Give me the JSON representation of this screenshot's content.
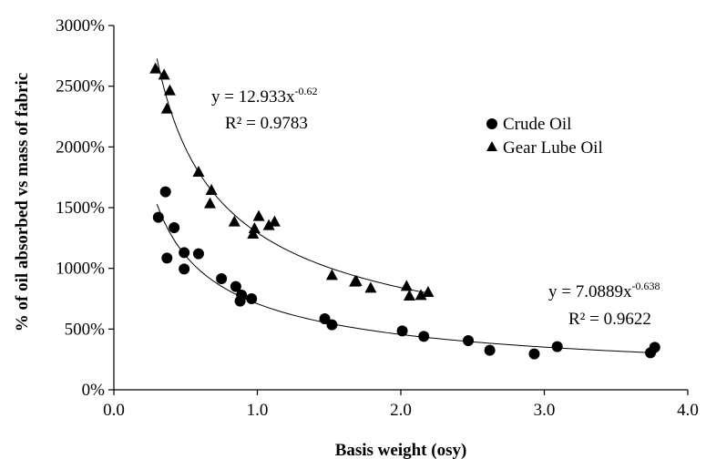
{
  "chart_data": {
    "type": "scatter",
    "title": "",
    "xlabel": "Basis weight (osy)",
    "ylabel": "% of oil absorbed vs mass of fabric",
    "xlim": [
      0,
      4
    ],
    "ylim": [
      0,
      3000
    ],
    "x_ticks": [
      0,
      1,
      2,
      3,
      4
    ],
    "x_tick_labels": [
      "0.0",
      "1.0",
      "2.0",
      "3.0",
      "4.0"
    ],
    "y_ticks": [
      0,
      500,
      1000,
      1500,
      2000,
      2500,
      3000
    ],
    "y_tick_labels": [
      "0%",
      "500%",
      "1000%",
      "1500%",
      "2000%",
      "2500%",
      "3000%"
    ],
    "grid": false,
    "legend_position": "right",
    "series": [
      {
        "name": "Crude Oil",
        "marker": "circle",
        "color": "#000000",
        "points": [
          [
            0.31,
            1420
          ],
          [
            0.36,
            1630
          ],
          [
            0.37,
            1085
          ],
          [
            0.42,
            1335
          ],
          [
            0.49,
            1130
          ],
          [
            0.49,
            995
          ],
          [
            0.59,
            1120
          ],
          [
            0.75,
            915
          ],
          [
            0.85,
            850
          ],
          [
            0.88,
            730
          ],
          [
            0.89,
            780
          ],
          [
            0.96,
            750
          ],
          [
            1.47,
            585
          ],
          [
            1.52,
            535
          ],
          [
            2.01,
            485
          ],
          [
            2.16,
            440
          ],
          [
            2.47,
            405
          ],
          [
            2.62,
            325
          ],
          [
            2.93,
            295
          ],
          [
            3.09,
            355
          ],
          [
            3.74,
            305
          ],
          [
            3.77,
            350
          ]
        ],
        "trendline": {
          "type": "power",
          "a": 7.0889,
          "b": -0.638,
          "x_range": [
            0.3,
            3.78
          ]
        },
        "equation": {
          "base": "y = 7.0889x",
          "exponent": "-0.638",
          "r2": "R² = 0.9622"
        }
      },
      {
        "name": "Gear Lube Oil",
        "marker": "triangle",
        "color": "#000000",
        "points": [
          [
            0.29,
            2650
          ],
          [
            0.35,
            2600
          ],
          [
            0.37,
            2320
          ],
          [
            0.39,
            2470
          ],
          [
            0.59,
            1800
          ],
          [
            0.67,
            1540
          ],
          [
            0.68,
            1650
          ],
          [
            0.84,
            1390
          ],
          [
            0.97,
            1290
          ],
          [
            0.98,
            1335
          ],
          [
            1.01,
            1435
          ],
          [
            1.08,
            1360
          ],
          [
            1.12,
            1390
          ],
          [
            1.52,
            950
          ],
          [
            1.68,
            895
          ],
          [
            1.69,
            900
          ],
          [
            1.79,
            845
          ],
          [
            2.04,
            860
          ],
          [
            2.06,
            780
          ],
          [
            2.14,
            785
          ],
          [
            2.19,
            810
          ]
        ],
        "trendline": {
          "type": "power",
          "a": 12.933,
          "b": -0.62,
          "x_range": [
            0.3,
            2.18
          ]
        },
        "equation": {
          "base": "y = 12.933x",
          "exponent": "-0.62",
          "r2": "R² = 0.9783"
        }
      }
    ]
  }
}
